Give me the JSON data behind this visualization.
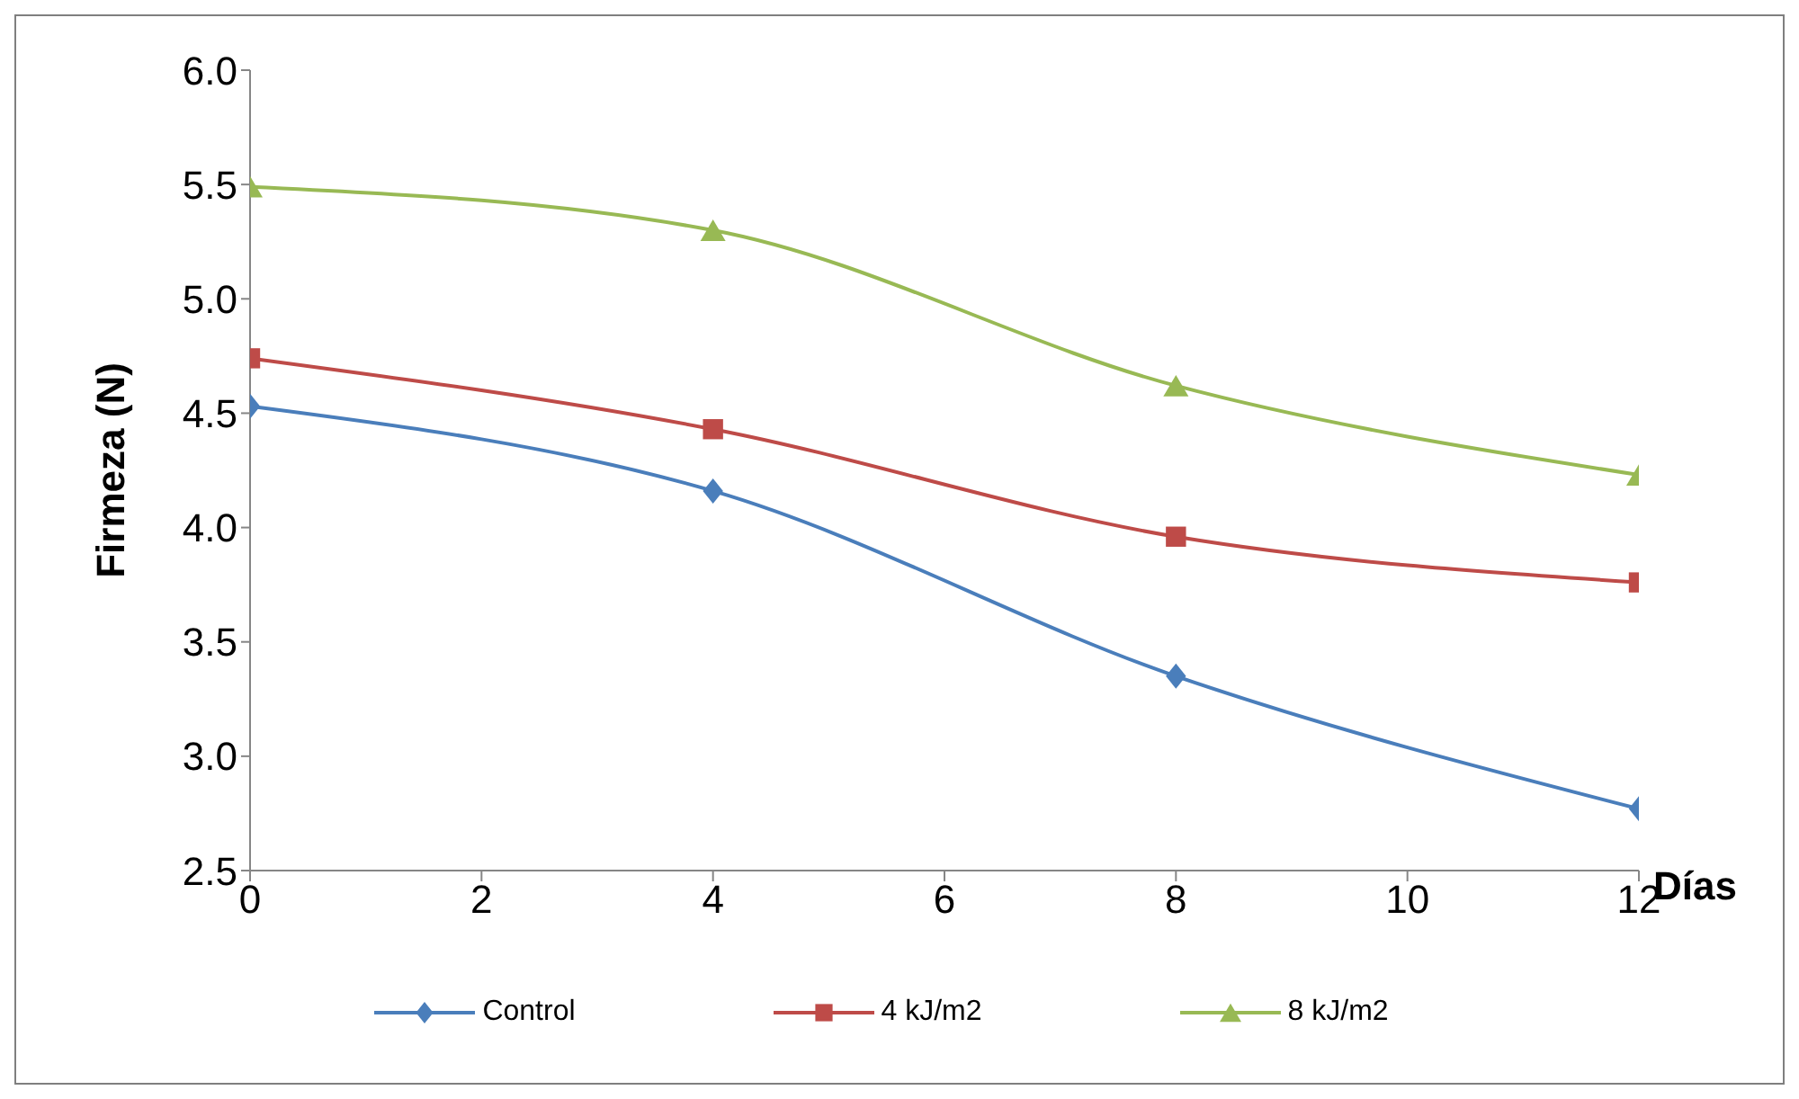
{
  "chart_data": {
    "type": "line",
    "xlabel": "Días",
    "ylabel": "Firmeza (N)",
    "x": [
      0,
      4,
      8,
      12
    ],
    "series": [
      {
        "name": "Control",
        "color": "#4a7ebb",
        "marker": "diamond",
        "values": [
          4.53,
          4.16,
          3.35,
          2.77
        ]
      },
      {
        "name": "4 kJ/m2",
        "color": "#be4b48",
        "marker": "square",
        "values": [
          4.74,
          4.43,
          3.96,
          3.76
        ]
      },
      {
        "name": "8 kJ/m2",
        "color": "#98b954",
        "marker": "triangle",
        "values": [
          5.49,
          5.3,
          4.62,
          4.23
        ]
      }
    ],
    "xlim": [
      0,
      12
    ],
    "xticks": [
      0,
      2,
      4,
      6,
      8,
      10,
      12
    ],
    "ylim": [
      2.5,
      6.0
    ],
    "yticks": [
      {
        "value": 2.5,
        "label": "2.5"
      },
      {
        "value": 3.0,
        "label": "3.0"
      },
      {
        "value": 3.5,
        "label": "3.5"
      },
      {
        "value": 4.0,
        "label": "4.0"
      },
      {
        "value": 4.5,
        "label": "4.5"
      },
      {
        "value": 5.0,
        "label": "5.0"
      },
      {
        "value": 5.5,
        "label": "5.5"
      },
      {
        "value": 6.0,
        "label": "6.0"
      }
    ],
    "grid": false,
    "legend": "bottom",
    "line_style": "solid"
  }
}
